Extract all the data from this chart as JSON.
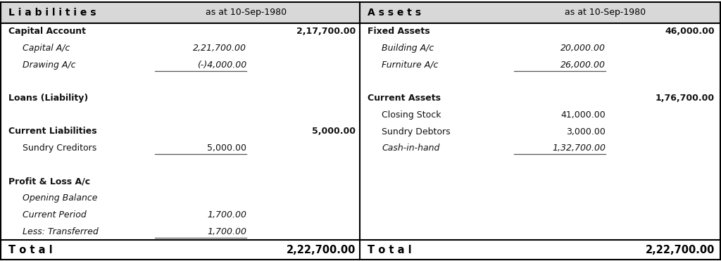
{
  "bg_color": "#ffffff",
  "fig_width": 10.24,
  "fig_height": 3.71,
  "liabilities_header": "L i a b i l i t i e s",
  "liabilities_date": "as at 10-Sep-1980",
  "assets_header": "A s s e t s",
  "assets_date": "as at 10-Sep-1980",
  "total_label": "T o t a l",
  "liabilities_total": "2,22,700.00",
  "assets_total": "2,22,700.00",
  "header_fs": 10.0,
  "date_fs": 9.0,
  "body_fs": 9.0,
  "total_fs": 10.5,
  "liabilities": [
    {
      "label": "Capital Account",
      "bold": true,
      "italic": false,
      "indent": false,
      "col1": "",
      "col2": "2,17,700.00",
      "underline": false
    },
    {
      "label": "Capital A/c",
      "bold": false,
      "italic": true,
      "indent": true,
      "col1": "2,21,700.00",
      "col2": "",
      "underline": false
    },
    {
      "label": "Drawing A/c",
      "bold": false,
      "italic": true,
      "indent": true,
      "col1": "(-)4,000.00",
      "col2": "",
      "underline": true
    },
    {
      "label": "",
      "bold": false,
      "italic": false,
      "indent": false,
      "col1": "",
      "col2": "",
      "underline": false
    },
    {
      "label": "Loans (Liability)",
      "bold": true,
      "italic": false,
      "indent": false,
      "col1": "",
      "col2": "",
      "underline": false
    },
    {
      "label": "",
      "bold": false,
      "italic": false,
      "indent": false,
      "col1": "",
      "col2": "",
      "underline": false
    },
    {
      "label": "Current Liabilities",
      "bold": true,
      "italic": false,
      "indent": false,
      "col1": "",
      "col2": "5,000.00",
      "underline": false
    },
    {
      "label": "Sundry Creditors",
      "bold": false,
      "italic": false,
      "indent": true,
      "col1": "5,000.00",
      "col2": "",
      "underline": true
    },
    {
      "label": "",
      "bold": false,
      "italic": false,
      "indent": false,
      "col1": "",
      "col2": "",
      "underline": false
    },
    {
      "label": "Profit & Loss A/c",
      "bold": true,
      "italic": false,
      "indent": false,
      "col1": "",
      "col2": "",
      "underline": false
    },
    {
      "label": "Opening Balance",
      "bold": false,
      "italic": true,
      "indent": true,
      "col1": "",
      "col2": "",
      "underline": false
    },
    {
      "label": "Current Period",
      "bold": false,
      "italic": true,
      "indent": true,
      "col1": "1,700.00",
      "col2": "",
      "underline": false
    },
    {
      "label": "Less: Transferred",
      "bold": false,
      "italic": true,
      "indent": true,
      "col1": "1,700.00",
      "col2": "",
      "underline": true
    }
  ],
  "assets": [
    {
      "label": "Fixed Assets",
      "bold": true,
      "italic": false,
      "indent": false,
      "col1": "",
      "col2": "46,000.00",
      "underline": false
    },
    {
      "label": "Building A/c",
      "bold": false,
      "italic": true,
      "indent": true,
      "col1": "20,000.00",
      "col2": "",
      "underline": false
    },
    {
      "label": "Furniture A/c",
      "bold": false,
      "italic": true,
      "indent": true,
      "col1": "26,000.00",
      "col2": "",
      "underline": true
    },
    {
      "label": "",
      "bold": false,
      "italic": false,
      "indent": false,
      "col1": "",
      "col2": "",
      "underline": false
    },
    {
      "label": "Current Assets",
      "bold": true,
      "italic": false,
      "indent": false,
      "col1": "",
      "col2": "1,76,700.00",
      "underline": false
    },
    {
      "label": "Closing Stock",
      "bold": false,
      "italic": false,
      "indent": true,
      "col1": "41,000.00",
      "col2": "",
      "underline": false
    },
    {
      "label": "Sundry Debtors",
      "bold": false,
      "italic": false,
      "indent": true,
      "col1": "3,000.00",
      "col2": "",
      "underline": false
    },
    {
      "label": "Cash-in-hand",
      "bold": false,
      "italic": true,
      "indent": true,
      "col1": "1,32,700.00",
      "col2": "",
      "underline": true
    },
    {
      "label": "",
      "bold": false,
      "italic": false,
      "indent": false,
      "col1": "",
      "col2": "",
      "underline": false
    },
    {
      "label": "",
      "bold": false,
      "italic": false,
      "indent": false,
      "col1": "",
      "col2": "",
      "underline": false
    },
    {
      "label": "",
      "bold": false,
      "italic": false,
      "indent": false,
      "col1": "",
      "col2": "",
      "underline": false
    },
    {
      "label": "",
      "bold": false,
      "italic": false,
      "indent": false,
      "col1": "",
      "col2": "",
      "underline": false
    },
    {
      "label": "",
      "bold": false,
      "italic": false,
      "indent": false,
      "col1": "",
      "col2": "",
      "underline": false
    }
  ]
}
